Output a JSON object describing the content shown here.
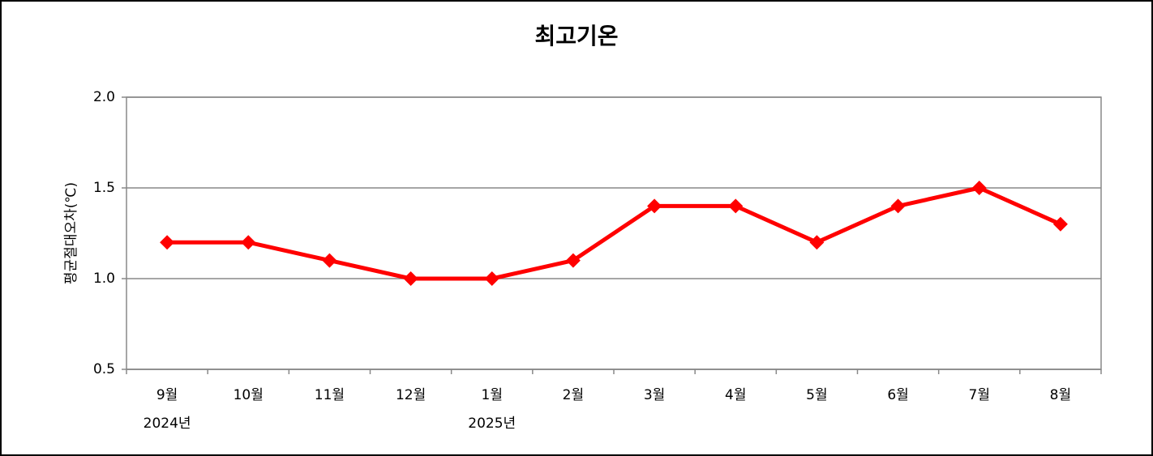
{
  "chart_data": {
    "type": "line",
    "title": "최고기온",
    "y_label": "평균절대오차(℃)",
    "categories": [
      "9월",
      "10월",
      "11월",
      "12월",
      "1월",
      "2월",
      "3월",
      "4월",
      "5월",
      "6월",
      "7월",
      "8월"
    ],
    "group_labels": [
      "2024년",
      null,
      null,
      null,
      "2025년",
      null,
      null,
      null,
      null,
      null,
      null,
      null
    ],
    "series": [
      {
        "name": "최고기온",
        "color": "#ff0000",
        "values": [
          1.2,
          1.2,
          1.1,
          1.0,
          1.0,
          1.1,
          1.4,
          1.4,
          1.2,
          1.4,
          1.5,
          1.3
        ]
      }
    ],
    "ylim": [
      0.5,
      2.0
    ],
    "yticks": [
      0.5,
      {
        "value": 1.0,
        "label": "1.0"
      },
      1.5,
      {
        "value": 2.0,
        "label": "2.0"
      }
    ],
    "grid": true
  }
}
